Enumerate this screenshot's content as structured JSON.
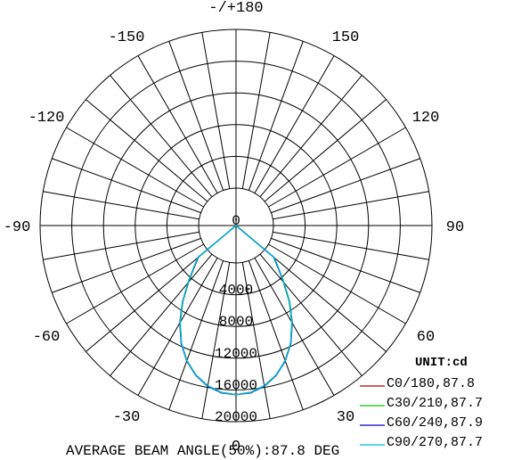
{
  "chart_data": {
    "type": "polar",
    "angle_labels": [
      {
        "text": "-/+180",
        "deg": 180
      },
      {
        "text": "150",
        "deg": 150
      },
      {
        "text": "120",
        "deg": 120
      },
      {
        "text": "90",
        "deg": 90
      },
      {
        "text": "60",
        "deg": 60
      },
      {
        "text": "30",
        "deg": 30
      },
      {
        "text": "0",
        "deg": 0
      },
      {
        "text": "-30",
        "deg": -30
      },
      {
        "text": "-60",
        "deg": -60
      },
      {
        "text": "-90",
        "deg": -90
      },
      {
        "text": "-120",
        "deg": -120
      },
      {
        "text": "-150",
        "deg": -150
      }
    ],
    "radial_labels": [
      "0",
      "4000",
      "8000",
      "12000",
      "16000",
      "20000"
    ],
    "r_max": 20000,
    "unit_label": "UNIT:cd",
    "series": [
      {
        "name": "C0/180,87.8",
        "color": "#b00000",
        "angles": [
          -60,
          -50,
          -45,
          -40,
          -35,
          -30,
          -25,
          -20,
          -15,
          -10,
          -5,
          0,
          5,
          10,
          15,
          20,
          25,
          30,
          35,
          40,
          45,
          50,
          60
        ],
        "values": [
          0,
          1500,
          2800,
          4600,
          7000,
          9400,
          11600,
          13400,
          14800,
          15800,
          16400,
          16600,
          16400,
          15800,
          14800,
          13400,
          11600,
          9400,
          7000,
          4600,
          2800,
          1500,
          0
        ]
      },
      {
        "name": "C30/210,87.7",
        "color": "#00c000",
        "angles": [
          -60,
          -50,
          -45,
          -40,
          -35,
          -30,
          -25,
          -20,
          -15,
          -10,
          -5,
          0,
          5,
          10,
          15,
          20,
          25,
          30,
          35,
          40,
          45,
          50,
          60
        ],
        "values": [
          0,
          1500,
          2800,
          4600,
          7000,
          9350,
          11600,
          13400,
          14800,
          15800,
          16400,
          16600,
          16400,
          15800,
          14800,
          13400,
          11600,
          9350,
          7000,
          4600,
          2800,
          1500,
          0
        ]
      },
      {
        "name": "C60/240,87.9",
        "color": "#0000b0",
        "angles": [
          -60,
          -50,
          -45,
          -40,
          -35,
          -30,
          -25,
          -20,
          -15,
          -10,
          -5,
          0,
          5,
          10,
          15,
          20,
          25,
          30,
          35,
          40,
          45,
          50,
          60
        ],
        "values": [
          0,
          1500,
          2800,
          4700,
          7100,
          9450,
          11650,
          13450,
          14850,
          15850,
          16450,
          16600,
          16450,
          15850,
          14850,
          13450,
          11650,
          9450,
          7100,
          4700,
          2800,
          1500,
          0
        ]
      },
      {
        "name": "C90/270,87.7",
        "color": "#00b8d8",
        "angles": [
          -60,
          -50,
          -45,
          -40,
          -35,
          -30,
          -25,
          -20,
          -15,
          -10,
          -5,
          0,
          5,
          10,
          15,
          20,
          25,
          30,
          35,
          40,
          45,
          50,
          60
        ],
        "values": [
          0,
          1600,
          2900,
          4700,
          7100,
          9400,
          11600,
          13400,
          14800,
          15800,
          16400,
          16600,
          16400,
          15800,
          14800,
          13400,
          11600,
          9400,
          7100,
          4700,
          2900,
          1600,
          0
        ]
      }
    ],
    "footer": "AVERAGE BEAM ANGLE(50%):87.8 DEG"
  }
}
